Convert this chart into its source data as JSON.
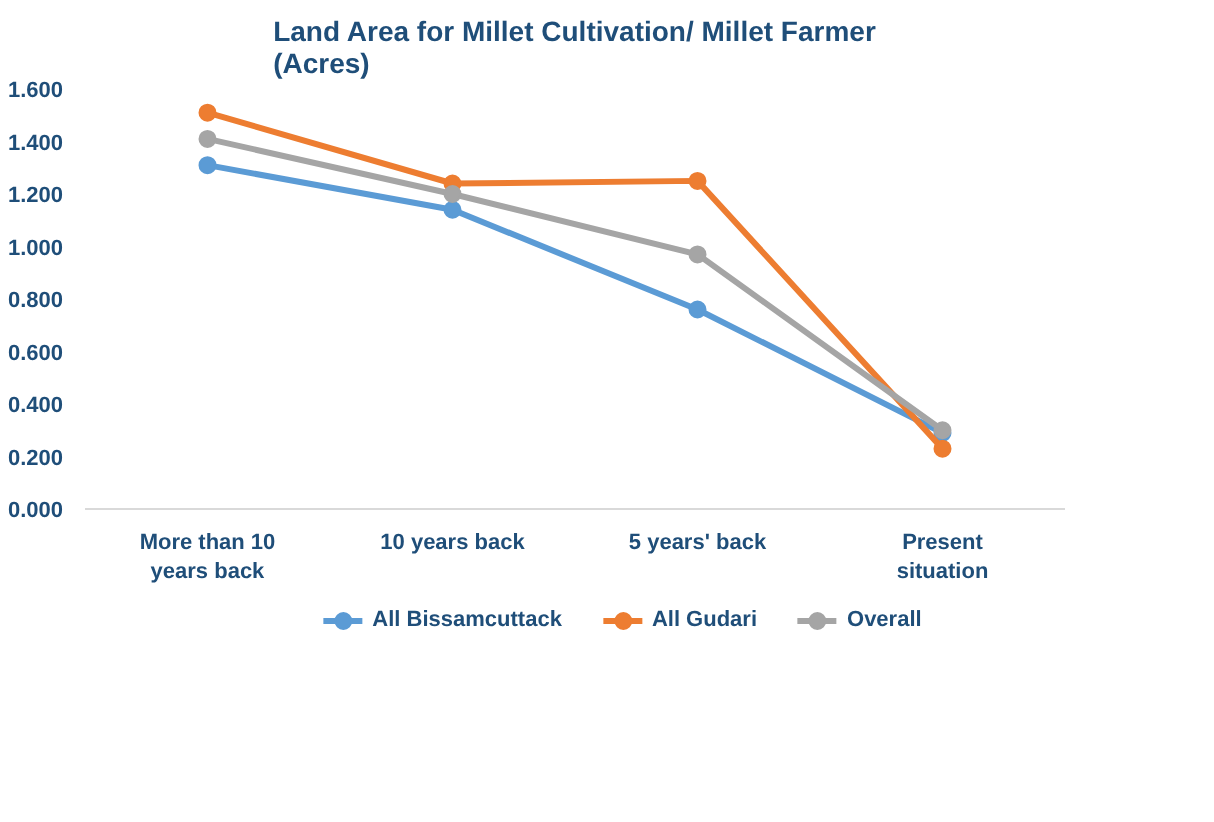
{
  "chart_data": {
    "type": "line",
    "title": "Land Area for Millet Cultivation/ Millet Farmer (Acres)",
    "categories": [
      "More than 10 years back",
      "10 years back",
      "5 years' back",
      "Present situation"
    ],
    "series": [
      {
        "name": "All Bissamcuttack",
        "color": "#5b9bd5",
        "values": [
          1.31,
          1.14,
          0.76,
          0.29
        ]
      },
      {
        "name": "All Gudari",
        "color": "#ed7d31",
        "values": [
          1.51,
          1.24,
          1.25,
          0.23
        ]
      },
      {
        "name": "Overall",
        "color": "#a5a5a5",
        "values": [
          1.41,
          1.2,
          0.97,
          0.3
        ]
      }
    ],
    "ylim": [
      0,
      1.6
    ],
    "yticks": [
      {
        "value": 0,
        "label": "0.000"
      },
      {
        "value": 0.2,
        "label": "0.200"
      },
      {
        "value": 0.4,
        "label": "0.400"
      },
      {
        "value": 0.6,
        "label": "0.600"
      },
      {
        "value": 0.8,
        "label": "0.800"
      },
      {
        "value": 1.0,
        "label": "1.000"
      },
      {
        "value": 1.2,
        "label": "1.200"
      },
      {
        "value": 1.4,
        "label": "1.400"
      },
      {
        "value": 1.6,
        "label": "1.600"
      }
    ],
    "grid": false,
    "legend": "bottom",
    "marker": "circle",
    "line_style": "solid"
  }
}
